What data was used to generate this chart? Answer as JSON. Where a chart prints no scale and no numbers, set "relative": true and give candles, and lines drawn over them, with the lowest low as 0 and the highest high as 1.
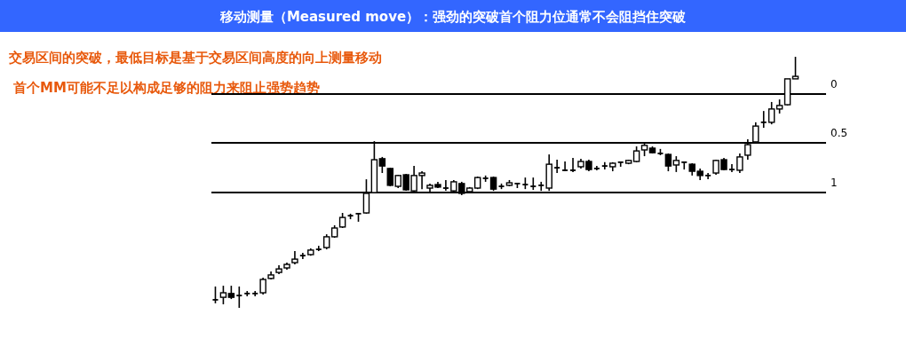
{
  "chart_data": {
    "type": "candlestick",
    "title": "移动测量（Measured move）：强劲的突破首个阻力位通常不会阻挡住突破",
    "annotations": [
      "交易区间的突破，最低目标是基于交易区间高度的向上测量移动",
      "首个MM可能不足以构成足够的阻力来阻止强势趋势",
      "0",
      "0.5",
      "1"
    ],
    "relative": true,
    "categories": [
      null,
      null,
      null,
      null,
      null,
      null,
      null,
      null,
      null,
      null,
      null,
      null,
      null,
      null,
      null,
      null,
      null,
      null,
      null,
      null,
      null,
      null,
      null,
      null,
      null,
      null,
      null,
      null,
      null,
      null,
      null,
      null,
      null,
      null,
      null,
      null,
      null,
      null,
      null,
      null,
      null,
      null,
      null,
      null,
      null,
      null,
      null,
      null,
      null,
      null,
      null,
      null,
      null,
      null,
      null,
      null,
      null,
      null,
      null,
      null,
      null,
      null,
      null,
      null,
      null,
      null,
      null,
      null,
      null,
      null,
      null,
      null,
      null,
      null
    ],
    "ohlc": [
      [
        0.032,
        0.085,
        0.018,
        0.032
      ],
      [
        0.042,
        0.088,
        0.014,
        0.06
      ],
      [
        0.057,
        0.088,
        0.035,
        0.042
      ],
      [
        0.049,
        0.085,
        0,
        0.049
      ],
      [
        0.057,
        0.067,
        0.046,
        0.057
      ],
      [
        0.057,
        0.067,
        0.046,
        0.057
      ],
      [
        0.06,
        0.12,
        0.053,
        0.113
      ],
      [
        0.117,
        0.145,
        0.113,
        0.131
      ],
      [
        0.141,
        0.17,
        0.134,
        0.155
      ],
      [
        0.159,
        0.18,
        0.152,
        0.173
      ],
      [
        0.18,
        0.226,
        0.173,
        0.194
      ],
      [
        0.208,
        0.219,
        0.194,
        0.208
      ],
      [
        0.212,
        0.237,
        0.208,
        0.23
      ],
      [
        0.233,
        0.247,
        0.226,
        0.233
      ],
      [
        0.24,
        0.293,
        0.233,
        0.283
      ],
      [
        0.283,
        0.329,
        0.279,
        0.318
      ],
      [
        0.322,
        0.378,
        0.318,
        0.36
      ],
      [
        0.367,
        0.375,
        0.353,
        0.367
      ],
      [
        0.375,
        0.378,
        0.343,
        0.375
      ],
      [
        0.378,
        0.512,
        0.375,
        0.456
      ],
      [
        0.459,
        0.664,
        0.456,
        0.59
      ],
      [
        0.594,
        0.601,
        0.537,
        0.565
      ],
      [
        0.555,
        0.558,
        0.484,
        0.488
      ],
      [
        0.484,
        0.53,
        0.477,
        0.527
      ],
      [
        0.53,
        0.534,
        0.466,
        0.47
      ],
      [
        0.466,
        0.565,
        0.463,
        0.527
      ],
      [
        0.527,
        0.544,
        0.473,
        0.537
      ],
      [
        0.477,
        0.495,
        0.459,
        0.488
      ],
      [
        0.491,
        0.502,
        0.477,
        0.481
      ],
      [
        0.477,
        0.509,
        0.466,
        0.477
      ],
      [
        0.466,
        0.509,
        0.463,
        0.502
      ],
      [
        0.495,
        0.502,
        0.449,
        0.456
      ],
      [
        0.463,
        0.481,
        0.459,
        0.477
      ],
      [
        0.477,
        0.523,
        0.473,
        0.519
      ],
      [
        0.516,
        0.527,
        0.502,
        0.516
      ],
      [
        0.519,
        0.523,
        0.466,
        0.473
      ],
      [
        0.484,
        0.495,
        0.473,
        0.484
      ],
      [
        0.488,
        0.509,
        0.484,
        0.498
      ],
      [
        0.495,
        0.495,
        0.477,
        0.495
      ],
      [
        0.491,
        0.519,
        0.473,
        0.491
      ],
      [
        0.484,
        0.519,
        0.47,
        0.484
      ],
      [
        0.488,
        0.502,
        0.466,
        0.488
      ],
      [
        0.477,
        0.611,
        0.466,
        0.572
      ],
      [
        0.558,
        0.59,
        0.537,
        0.558
      ],
      [
        0.548,
        0.583,
        0.544,
        0.548
      ],
      [
        0.548,
        0.597,
        0.541,
        0.548
      ],
      [
        0.562,
        0.594,
        0.555,
        0.583
      ],
      [
        0.583,
        0.59,
        0.544,
        0.551
      ],
      [
        0.555,
        0.565,
        0.548,
        0.555
      ],
      [
        0.565,
        0.58,
        0.551,
        0.565
      ],
      [
        0.562,
        0.58,
        0.544,
        0.576
      ],
      [
        0.58,
        0.58,
        0.562,
        0.58
      ],
      [
        0.576,
        0.59,
        0.572,
        0.587
      ],
      [
        0.583,
        0.643,
        0.58,
        0.625
      ],
      [
        0.629,
        0.654,
        0.604,
        0.647
      ],
      [
        0.636,
        0.643,
        0.615,
        0.618
      ],
      [
        0.615,
        0.633,
        0.608,
        0.615
      ],
      [
        0.611,
        0.615,
        0.544,
        0.565
      ],
      [
        0.569,
        0.604,
        0.541,
        0.587
      ],
      [
        0.58,
        0.58,
        0.551,
        0.58
      ],
      [
        0.572,
        0.576,
        0.527,
        0.544
      ],
      [
        0.544,
        0.555,
        0.509,
        0.527
      ],
      [
        0.527,
        0.537,
        0.512,
        0.527
      ],
      [
        0.537,
        0.59,
        0.53,
        0.587
      ],
      [
        0.59,
        0.597,
        0.548,
        0.551
      ],
      [
        0.551,
        0.572,
        0.541,
        0.551
      ],
      [
        0.548,
        0.615,
        0.537,
        0.601
      ],
      [
        0.608,
        0.671,
        0.59,
        0.65
      ],
      [
        0.661,
        0.739,
        0.654,
        0.724
      ],
      [
        0.739,
        0.784,
        0.717,
        0.739
      ],
      [
        0.739,
        0.82,
        0.731,
        0.792
      ],
      [
        0.792,
        0.83,
        0.774,
        0.806
      ],
      [
        0.809,
        0.912,
        0.806,
        0.912
      ],
      [
        0.912,
        1.0,
        0.912,
        0.922
      ]
    ],
    "ref_lines": [
      {
        "axis": "y",
        "value": 0.852
      },
      {
        "axis": "y",
        "value": 0.657
      },
      {
        "axis": "y",
        "value": 0.459
      }
    ]
  }
}
